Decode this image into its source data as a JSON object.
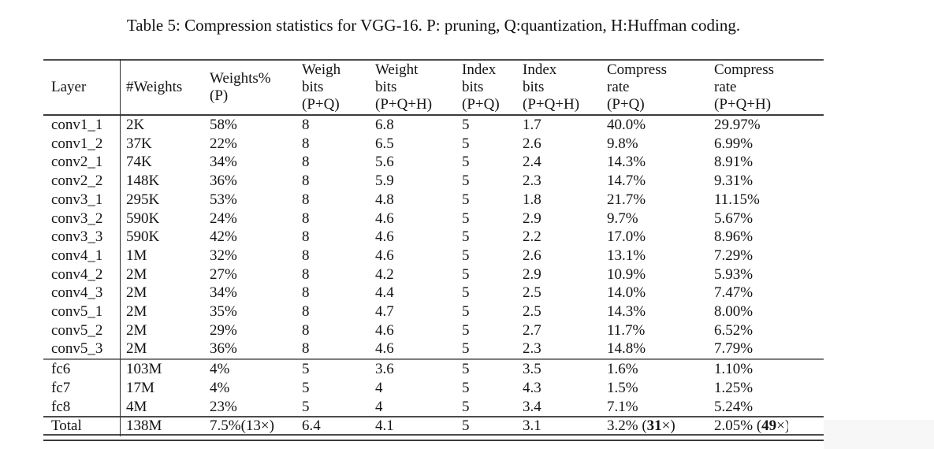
{
  "colors": {
    "background": "#ffffff",
    "text": "#141414",
    "rule_dark": "#3b3b3b",
    "rule_medium": "#4c4c4c",
    "rule_gray": "#7e7e7e"
  },
  "caption": "Table 5: Compression statistics for VGG-16. P: pruning, Q:quantization, H:Huffman coding.",
  "table": {
    "columns": [
      {
        "lines": [
          "Layer"
        ]
      },
      {
        "lines": [
          "#Weights"
        ]
      },
      {
        "lines": [
          "Weights%",
          "(P)"
        ]
      },
      {
        "lines": [
          "Weigh",
          "bits",
          "(P+Q)"
        ]
      },
      {
        "lines": [
          "Weight",
          "bits",
          "(P+Q+H)"
        ]
      },
      {
        "lines": [
          "Index",
          "bits",
          "(P+Q)"
        ]
      },
      {
        "lines": [
          "Index",
          "bits",
          "(P+Q+H)"
        ]
      },
      {
        "lines": [
          "Compress",
          "rate",
          "(P+Q)"
        ]
      },
      {
        "lines": [
          "Compress",
          "rate",
          "(P+Q+H)"
        ]
      }
    ],
    "conv_rows": [
      [
        "conv1_1",
        "2K",
        "58%",
        "8",
        "6.8",
        "5",
        "1.7",
        "40.0%",
        "29.97%"
      ],
      [
        "conv1_2",
        "37K",
        "22%",
        "8",
        "6.5",
        "5",
        "2.6",
        "9.8%",
        "6.99%"
      ],
      [
        "conv2_1",
        "74K",
        "34%",
        "8",
        "5.6",
        "5",
        "2.4",
        "14.3%",
        "8.91%"
      ],
      [
        "conv2_2",
        "148K",
        "36%",
        "8",
        "5.9",
        "5",
        "2.3",
        "14.7%",
        "9.31%"
      ],
      [
        "conv3_1",
        "295K",
        "53%",
        "8",
        "4.8",
        "5",
        "1.8",
        "21.7%",
        "11.15%"
      ],
      [
        "conv3_2",
        "590K",
        "24%",
        "8",
        "4.6",
        "5",
        "2.9",
        "9.7%",
        "5.67%"
      ],
      [
        "conv3_3",
        "590K",
        "42%",
        "8",
        "4.6",
        "5",
        "2.2",
        "17.0%",
        "8.96%"
      ],
      [
        "conv4_1",
        "1M",
        "32%",
        "8",
        "4.6",
        "5",
        "2.6",
        "13.1%",
        "7.29%"
      ],
      [
        "conv4_2",
        "2M",
        "27%",
        "8",
        "4.2",
        "5",
        "2.9",
        "10.9%",
        "5.93%"
      ],
      [
        "conv4_3",
        "2M",
        "34%",
        "8",
        "4.4",
        "5",
        "2.5",
        "14.0%",
        "7.47%"
      ],
      [
        "conv5_1",
        "2M",
        "35%",
        "8",
        "4.7",
        "5",
        "2.5",
        "14.3%",
        "8.00%"
      ],
      [
        "conv5_2",
        "2M",
        "29%",
        "8",
        "4.6",
        "5",
        "2.7",
        "11.7%",
        "6.52%"
      ],
      [
        "conv5_3",
        "2M",
        "36%",
        "8",
        "4.6",
        "5",
        "2.3",
        "14.8%",
        "7.79%"
      ]
    ],
    "fc_rows": [
      [
        "fc6",
        "103M",
        "4%",
        "5",
        "3.6",
        "5",
        "3.5",
        "1.6%",
        "1.10%"
      ],
      [
        "fc7",
        "17M",
        "4%",
        "5",
        "4",
        "5",
        "4.3",
        "1.5%",
        "1.25%"
      ],
      [
        "fc8",
        "4M",
        "23%",
        "5",
        "4",
        "5",
        "3.4",
        "7.1%",
        "5.24%"
      ]
    ],
    "total_row": {
      "layer": "Total",
      "weights": "138M",
      "weights_pct": "7.5%(13×)",
      "weigh_bits_pq": "6.4",
      "weight_bits_pqh": "4.1",
      "index_bits_pq": "5",
      "index_bits_pqh": "3.1",
      "compress_pq": {
        "prefix": "3.2% (",
        "bold": "31",
        "suffix": "×)"
      },
      "compress_pqh": {
        "prefix": "2.05% (",
        "bold": "49",
        "times": "×",
        "cut": ")"
      }
    }
  }
}
